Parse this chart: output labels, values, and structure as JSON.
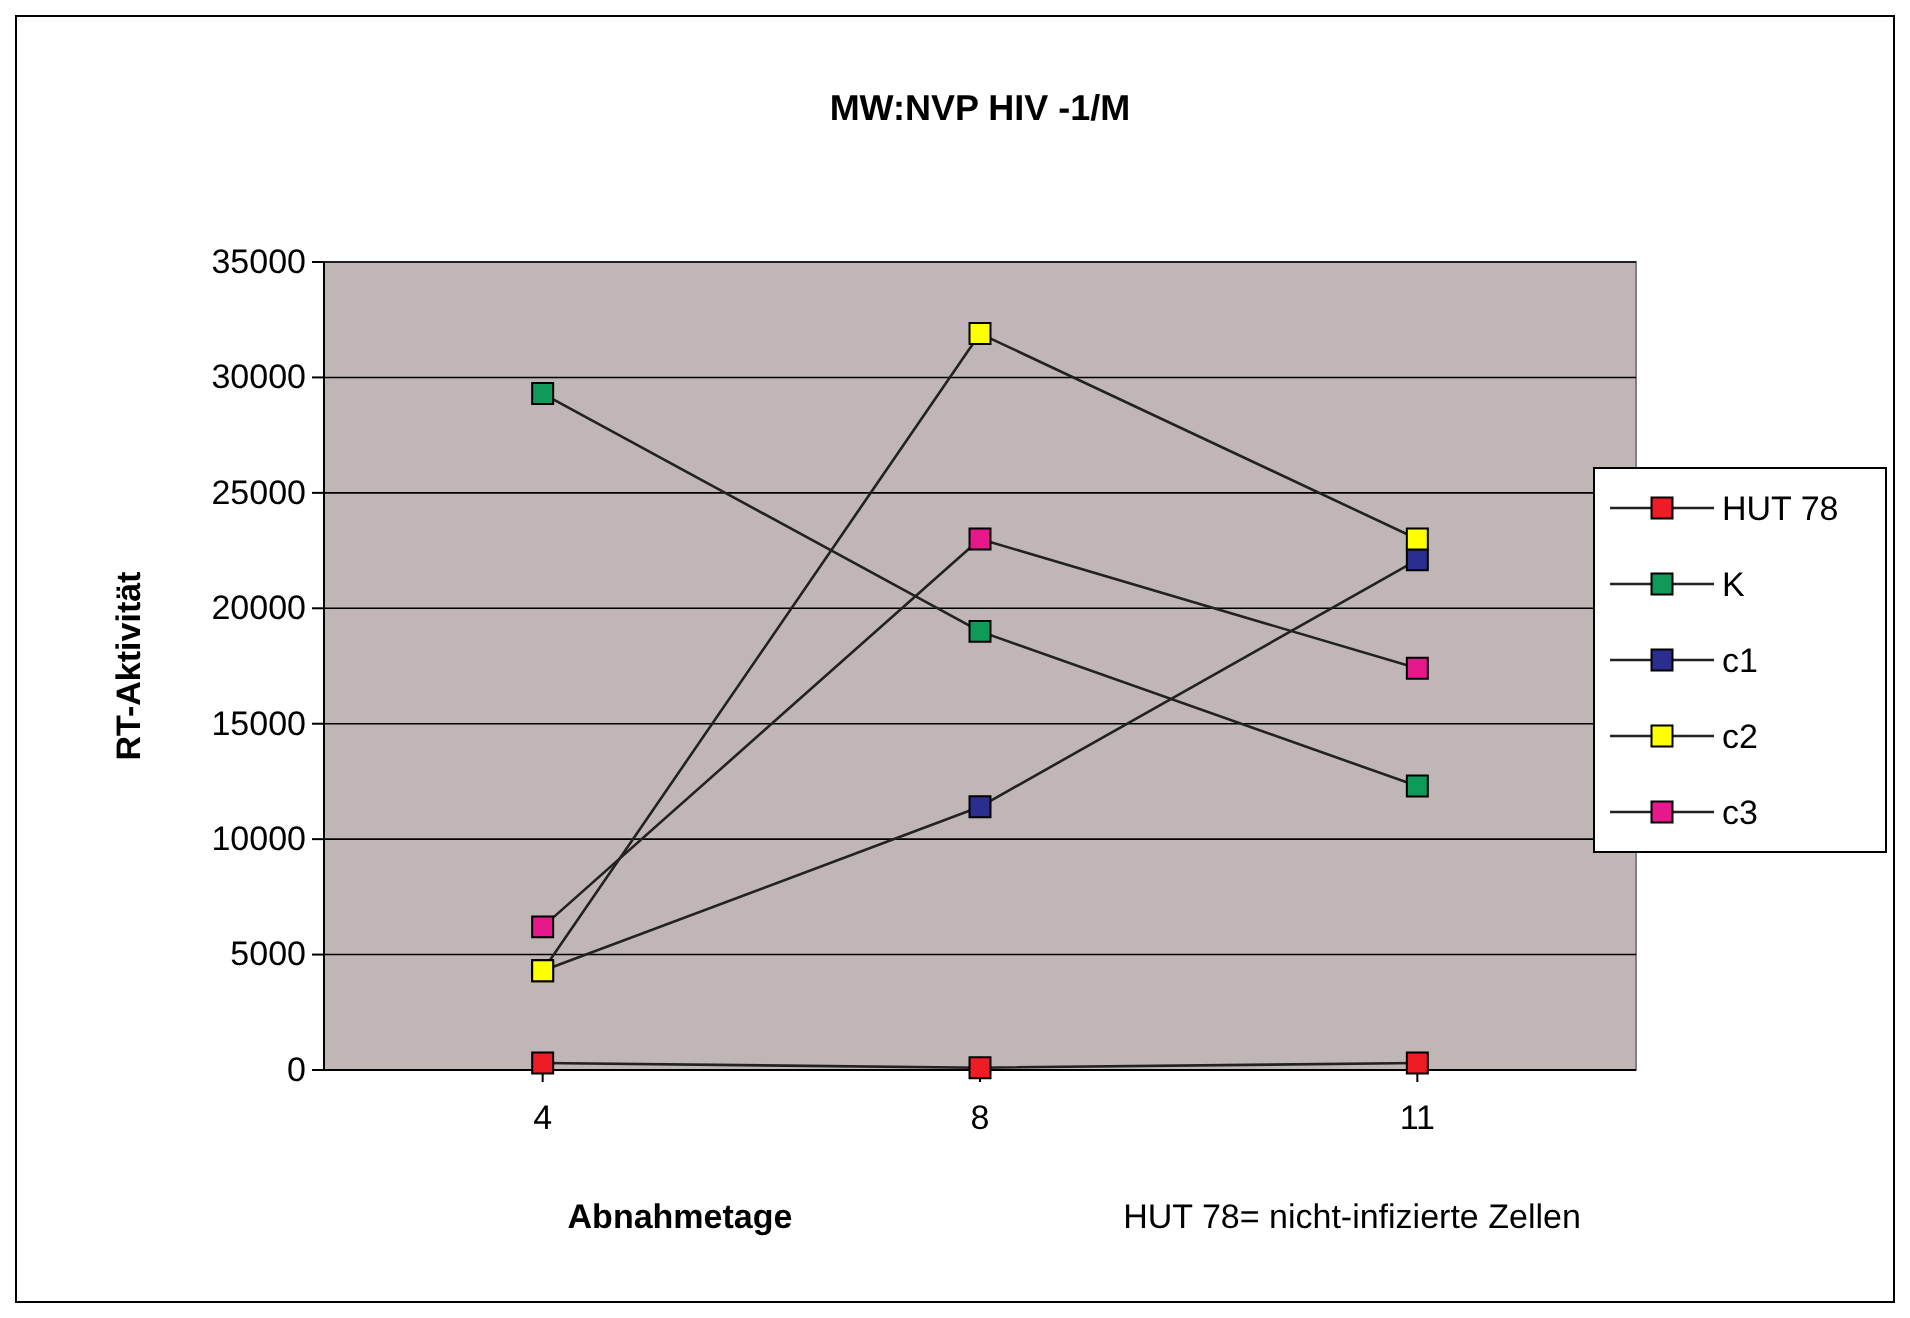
{
  "chart_data": {
    "type": "line",
    "title": "MW:NVP HIV -1/M",
    "xlabel": "Abnahmetage",
    "ylabel": "RT-Aktivität",
    "categories": [
      "4",
      "8",
      "11"
    ],
    "series": [
      {
        "name": "HUT 78",
        "color": "#ee1c25",
        "values": [
          300,
          100,
          300
        ]
      },
      {
        "name": "K",
        "color": "#0f9a5a",
        "values": [
          29300,
          19000,
          12300
        ]
      },
      {
        "name": "c1",
        "color": "#2b2e8f",
        "values": [
          4300,
          11400,
          22100
        ]
      },
      {
        "name": "c2",
        "color": "#ffff00",
        "values": [
          4300,
          31900,
          23000
        ]
      },
      {
        "name": "c3",
        "color": "#e6188b",
        "values": [
          6200,
          23000,
          17400
        ]
      }
    ],
    "ylim": [
      0,
      35000
    ],
    "yticks": [
      0,
      5000,
      10000,
      15000,
      20000,
      25000,
      30000,
      35000
    ],
    "grid": "y",
    "legend": "right",
    "marker": "square",
    "line_style": "solid",
    "annotations": [
      "HUT 78= nicht-infizierte Zellen"
    ]
  }
}
